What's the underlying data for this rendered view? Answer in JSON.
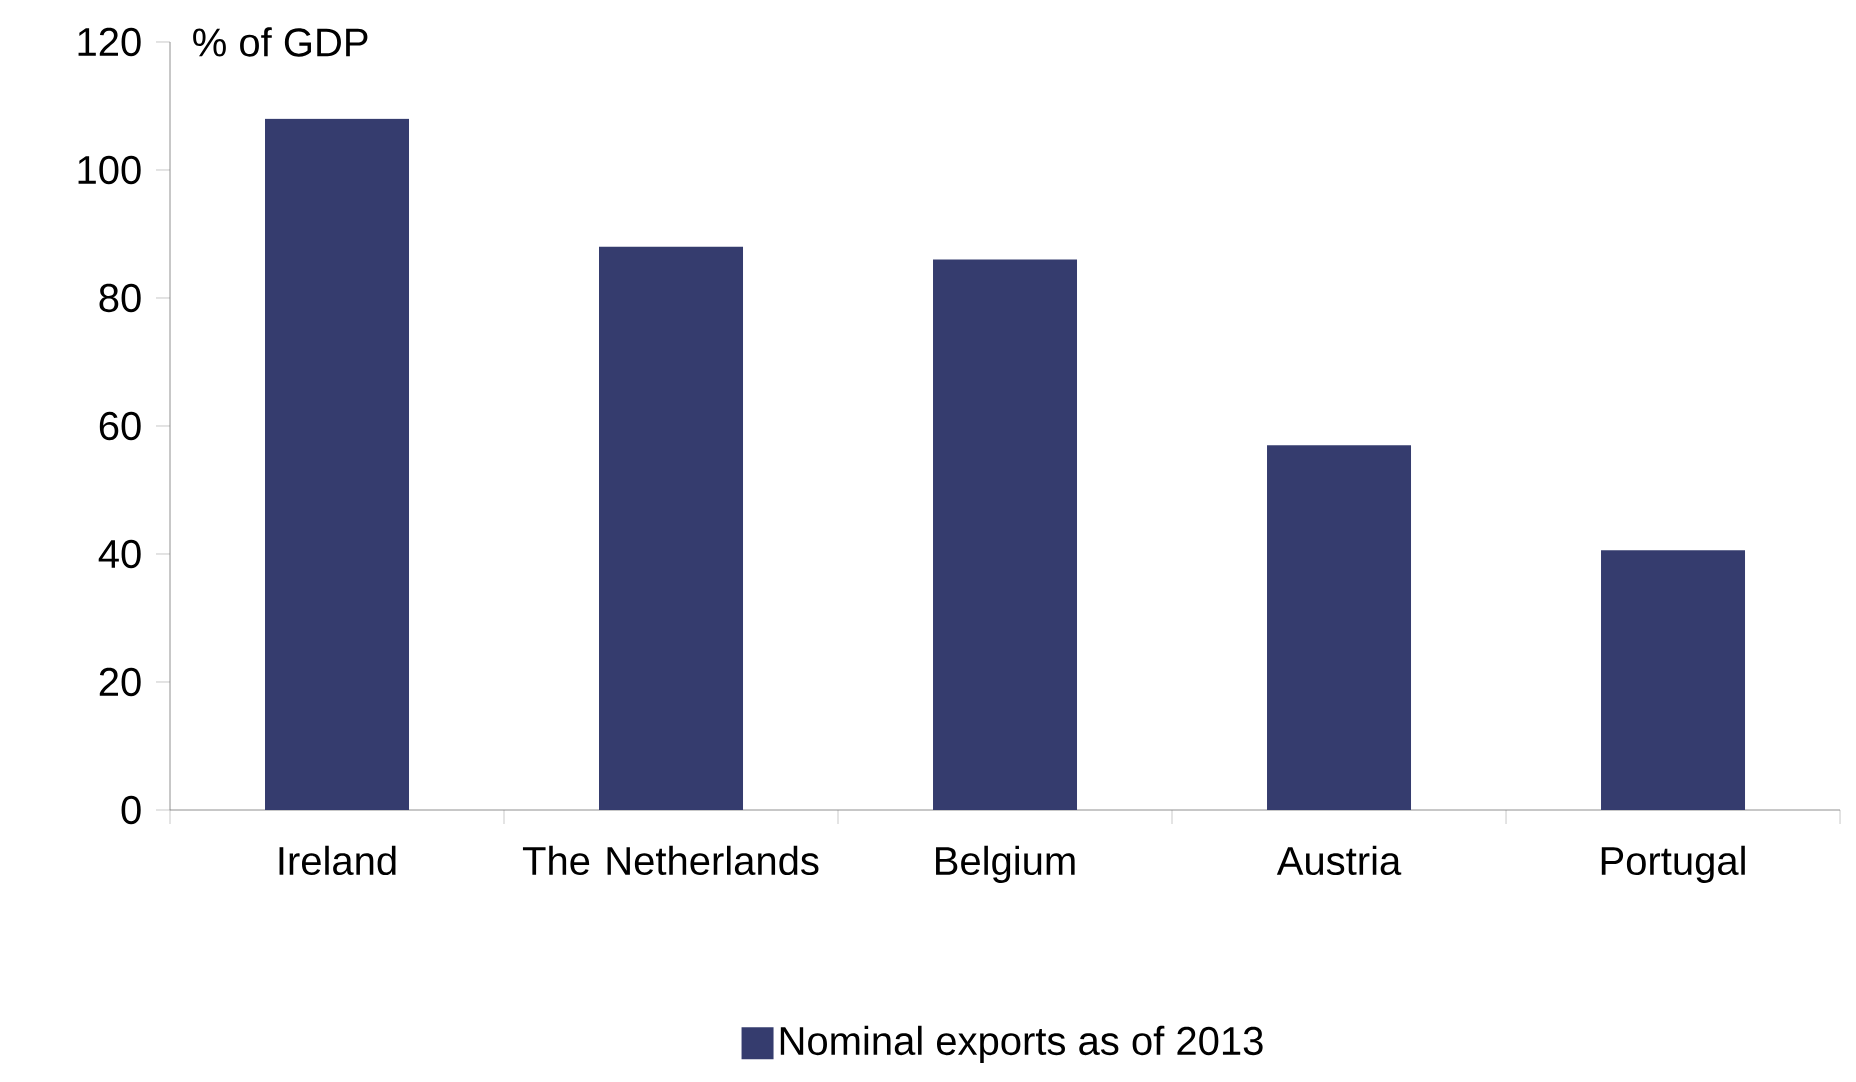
{
  "chart_data": {
    "type": "bar",
    "ylabel": "% of GDP",
    "categories": [
      "Ireland",
      "The Netherlands",
      "Belgium",
      "Austria",
      "Portugal"
    ],
    "series": [
      {
        "name": "Nominal exports as of 2013",
        "color": "#353c6e",
        "values": [
          108,
          88,
          86,
          57,
          40.6
        ]
      }
    ],
    "ylim": [
      0,
      120
    ],
    "yticks": [
      0,
      20,
      40,
      60,
      80,
      100,
      120
    ],
    "legend": "bottom"
  }
}
